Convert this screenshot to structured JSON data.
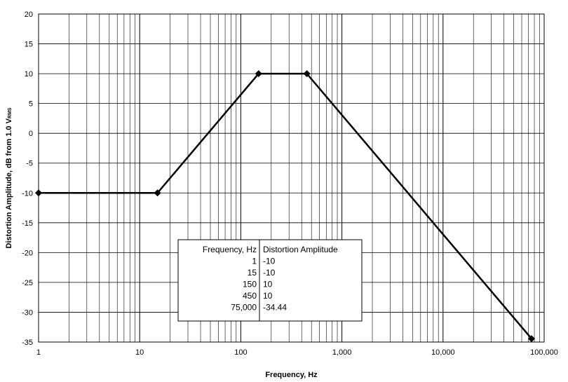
{
  "chart_data": {
    "type": "line",
    "xscale": "log",
    "xlabel": "Frequency, Hz",
    "ylabel": "Distortion Amplitude, dB from 1.0 V",
    "ylabel_sub": "RMS",
    "xlim": [
      1,
      100000
    ],
    "ylim": [
      -35,
      20
    ],
    "grid": true,
    "x_ticks": [
      1,
      10,
      100,
      1000,
      10000,
      100000
    ],
    "x_tick_labels": [
      "1",
      "10",
      "100",
      "1,000",
      "10,000",
      "100,000"
    ],
    "y_ticks": [
      20,
      15,
      10,
      5,
      0,
      -5,
      -10,
      -15,
      -20,
      -25,
      -30,
      -35
    ],
    "y_tick_labels": [
      "20",
      "15",
      "10",
      "5",
      "0",
      "-5",
      "-10",
      "-15",
      "-20",
      "-25",
      "-30",
      "-35"
    ],
    "series": [
      {
        "x": [
          1,
          15,
          150,
          450,
          75000
        ],
        "y": [
          -10,
          -10,
          10,
          10,
          -34.44
        ],
        "color": "#000000",
        "marker": "diamond"
      }
    ],
    "table": {
      "headers": [
        "Frequency, Hz",
        "Distortion Amplitude"
      ],
      "rows": [
        [
          "1",
          "-10"
        ],
        [
          "15",
          "-10"
        ],
        [
          "150",
          "10"
        ],
        [
          "450",
          "10"
        ],
        [
          "75,000",
          "-34.44"
        ]
      ]
    }
  }
}
